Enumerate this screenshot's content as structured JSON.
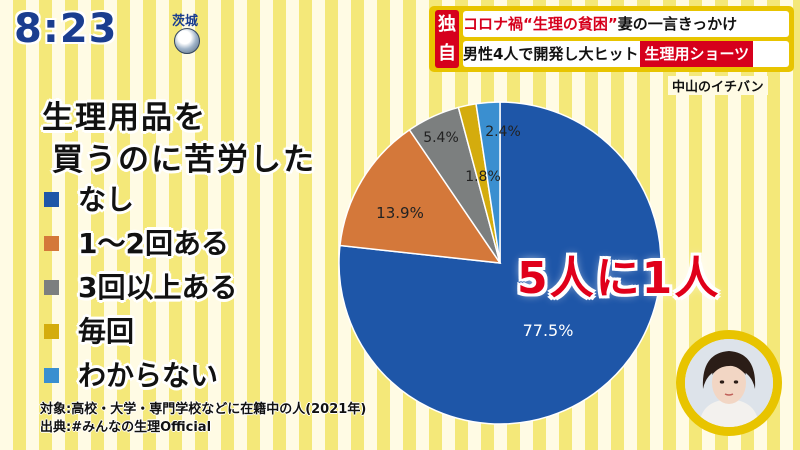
{
  "clock": {
    "time": "8:23",
    "region": "茨城"
  },
  "headline": {
    "badge": "独自",
    "line1_red": "コロナ禍“生理の貧困”",
    "line1_black": "妻の一言きっかけ",
    "line2_black": "男性4人で開発し大ヒット",
    "line2_tag": "生理用ショーツ",
    "corner_label": "中山のイチバン"
  },
  "title": {
    "line1": "生理用品を",
    "line2": "買うのに苦労した"
  },
  "highlight": "5人に1人",
  "footnotes": {
    "subject": "対象:高校・大学・専門学校などに在籍中の人(2021年)",
    "source": "出典:#みんなの生理Official"
  },
  "colors": {
    "accent_yellow": "#e8c400",
    "accent_red": "#d6001c",
    "callout_red": "#e0001a",
    "clock_blue": "#1a3d8f"
  },
  "chart_data": {
    "type": "pie",
    "slices": [
      {
        "label": "なし",
        "value": 77.5,
        "display": "77.5%",
        "color": "#1e56a8"
      },
      {
        "label": "1〜2回ある",
        "value": 13.9,
        "display": "13.9%",
        "color": "#d4783a"
      },
      {
        "label": "3回以上ある",
        "value": 5.4,
        "display": "5.4%",
        "color": "#7c7f7f"
      },
      {
        "label": "毎回",
        "value": 1.8,
        "display": "1.8%",
        "color": "#d4ac0d"
      },
      {
        "label": "わからない",
        "value": 2.4,
        "display": "2.4%",
        "color": "#3a8fd0"
      }
    ]
  }
}
